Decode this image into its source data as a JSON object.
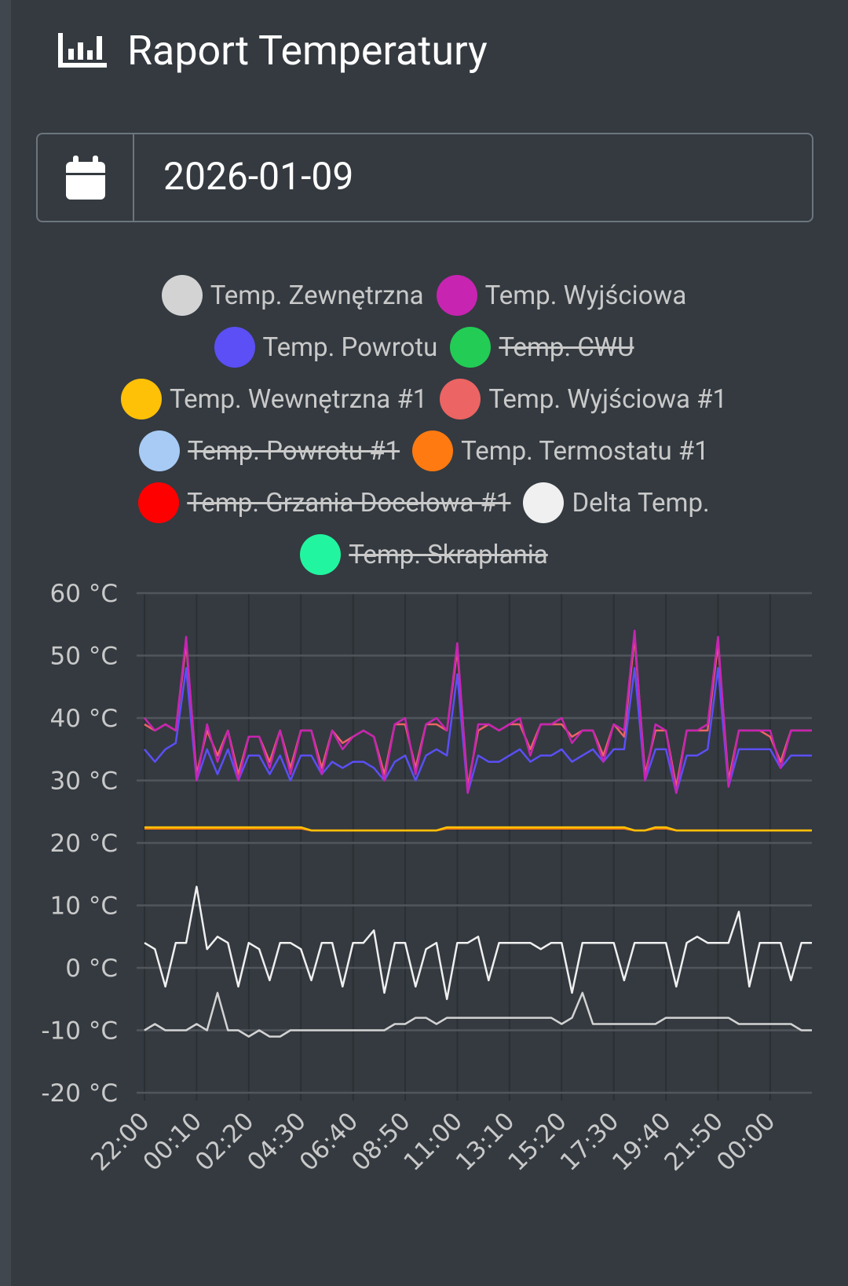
{
  "header": {
    "title": "Raport Temperatury"
  },
  "date_input": {
    "value": "2026-01-09"
  },
  "chart_data": {
    "type": "line",
    "categories": [
      "22:00",
      null,
      null,
      null,
      null,
      "00:10",
      null,
      null,
      null,
      null,
      "02:20",
      null,
      null,
      null,
      null,
      "04:30",
      null,
      null,
      null,
      null,
      "06:40",
      null,
      null,
      null,
      null,
      "08:50",
      null,
      null,
      null,
      null,
      "11:00",
      null,
      null,
      null,
      null,
      "13:10",
      null,
      null,
      null,
      null,
      "15:20",
      null,
      null,
      null,
      null,
      "17:30",
      null,
      null,
      null,
      null,
      "19:40",
      null,
      null,
      null,
      null,
      "21:50",
      null,
      null,
      null,
      null,
      "00:00",
      null,
      null,
      null,
      null
    ],
    "ylim": [
      -20,
      60
    ],
    "yticks": [
      {
        "value": -20,
        "label": "-20 °C"
      },
      {
        "value": -10,
        "label": "-10 °C"
      },
      {
        "value": 0,
        "label": "0 °C"
      },
      {
        "value": 10,
        "label": "10 °C"
      },
      {
        "value": 20,
        "label": "20 °C"
      },
      {
        "value": 30,
        "label": "30 °C"
      },
      {
        "value": 40,
        "label": "40 °C"
      },
      {
        "value": 50,
        "label": "50 °C"
      },
      {
        "value": 60,
        "label": "60 °C"
      }
    ],
    "grid": true,
    "legend": "top",
    "series": [
      {
        "name": "Temp. Zewnętrzna",
        "color": "#d3d3d3",
        "values": [
          -10,
          -9,
          -10,
          -10,
          -10,
          -9,
          -10,
          -4,
          -10,
          -10,
          -11,
          -10,
          -11,
          -11,
          -10,
          -10,
          -10,
          -10,
          -10,
          -10,
          -10,
          -10,
          -10,
          -10,
          -9,
          -9,
          -8,
          -8,
          -9,
          -8,
          -8,
          -8,
          -8,
          -8,
          -8,
          -8,
          -8,
          -8,
          -8,
          -8,
          -9,
          -8,
          -4,
          -9,
          -9,
          -9,
          -9,
          -9,
          -9,
          -9,
          -8,
          -8,
          -8,
          -8,
          -8,
          -8,
          -8,
          -9,
          -9,
          -9,
          -9,
          -9,
          -9,
          -10,
          -10
        ]
      },
      {
        "name": "Temp. Wyjściowa",
        "color": "#c724b1",
        "values": [
          40,
          38,
          39,
          38,
          53,
          30,
          39,
          33,
          38,
          30,
          37,
          37,
          32,
          38,
          31,
          38,
          38,
          31,
          38,
          35,
          37,
          38,
          37,
          30,
          39,
          40,
          31,
          39,
          40,
          38,
          52,
          28,
          39,
          39,
          38,
          39,
          40,
          34,
          39,
          39,
          40,
          36,
          38,
          38,
          33,
          39,
          38,
          54,
          30,
          39,
          38,
          28,
          38,
          38,
          39,
          53,
          29,
          38,
          38,
          38,
          38,
          32,
          38,
          38,
          38
        ]
      },
      {
        "name": "Temp. Powrotu",
        "color": "#5b4ff5",
        "values": [
          35,
          33,
          35,
          36,
          48,
          30,
          35,
          31,
          35,
          30,
          34,
          34,
          31,
          34,
          30,
          34,
          34,
          31,
          33,
          32,
          33,
          33,
          32,
          30,
          33,
          34,
          30,
          34,
          35,
          34,
          47,
          28,
          34,
          33,
          33,
          34,
          35,
          33,
          34,
          34,
          35,
          33,
          34,
          35,
          33,
          35,
          35,
          48,
          30,
          35,
          35,
          28,
          34,
          34,
          35,
          48,
          29,
          35,
          35,
          35,
          35,
          32,
          34,
          34,
          34
        ]
      },
      {
        "name": "Temp. CWU",
        "color": "#22cc55",
        "hidden": true
      },
      {
        "name": "Temp. Wewnętrzna #1",
        "color": "#ffc107",
        "values": [
          22.5,
          22.5,
          22.5,
          22.5,
          22.5,
          22.5,
          22.5,
          22.5,
          22.5,
          22.5,
          22.5,
          22.5,
          22.5,
          22.5,
          22.5,
          22.5,
          22,
          22,
          22,
          22,
          22,
          22,
          22,
          22,
          22,
          22,
          22,
          22,
          22,
          22.5,
          22.5,
          22.5,
          22.5,
          22.5,
          22.5,
          22.5,
          22.5,
          22.5,
          22.5,
          22.5,
          22.5,
          22.5,
          22.5,
          22.5,
          22.5,
          22.5,
          22.5,
          22,
          22,
          22.5,
          22.5,
          22,
          22,
          22,
          22,
          22,
          22,
          22,
          22,
          22,
          22,
          22,
          22,
          22,
          22
        ]
      },
      {
        "name": "Temp. Wyjściowa #1",
        "color": "#ec6464",
        "values": [
          39,
          38,
          39,
          38,
          52,
          31,
          38,
          34,
          38,
          31,
          37,
          37,
          33,
          38,
          32,
          38,
          38,
          32,
          38,
          36,
          37,
          38,
          37,
          31,
          39,
          39,
          32,
          39,
          39,
          38,
          51,
          29,
          38,
          39,
          38,
          39,
          39,
          35,
          39,
          39,
          39,
          37,
          38,
          38,
          34,
          39,
          37,
          53,
          31,
          38,
          38,
          29,
          38,
          38,
          38,
          52,
          30,
          38,
          38,
          38,
          37,
          33,
          38,
          38,
          38
        ]
      },
      {
        "name": "Temp. Powrotu #1",
        "color": "#a8cbf5",
        "hidden": true
      },
      {
        "name": "Temp. Termostatu #1",
        "color": "#ff7a10",
        "values": [
          22.3,
          22.3,
          22.3,
          22.3,
          22.3,
          22.3,
          22.3,
          22.3,
          22.3,
          22.3,
          22.3,
          22.3,
          22.3,
          22.3,
          22.3,
          22.3,
          22,
          22,
          22,
          22,
          22,
          22,
          22,
          22,
          22,
          22,
          22,
          22,
          22,
          22.3,
          22.3,
          22.3,
          22.3,
          22.3,
          22.3,
          22.3,
          22.3,
          22.3,
          22.3,
          22.3,
          22.3,
          22.3,
          22.3,
          22.3,
          22.3,
          22.3,
          22.3,
          22,
          22,
          22.3,
          22.3,
          22,
          22,
          22,
          22,
          22,
          22,
          22,
          22,
          22,
          22,
          22,
          22,
          22,
          22
        ]
      },
      {
        "name": "Temp. Grzania Docelowa #1",
        "color": "#ff0000",
        "hidden": true
      },
      {
        "name": "Delta Temp.",
        "color": "#f0f0f0",
        "values": [
          4,
          3,
          -3,
          4,
          4,
          13,
          3,
          5,
          4,
          -3,
          4,
          3,
          -2,
          4,
          4,
          3,
          -2,
          4,
          4,
          -3,
          4,
          4,
          6,
          -4,
          4,
          4,
          -3,
          3,
          4,
          -5,
          4,
          4,
          5,
          -2,
          4,
          4,
          4,
          4,
          3,
          4,
          4,
          -4,
          4,
          4,
          4,
          4,
          -2,
          4,
          4,
          4,
          4,
          -3,
          4,
          5,
          4,
          4,
          4,
          9,
          -3,
          4,
          4,
          4,
          -2,
          4,
          4
        ]
      },
      {
        "name": "Temp. Skraplania",
        "color": "#22f5a0",
        "hidden": true
      }
    ]
  }
}
